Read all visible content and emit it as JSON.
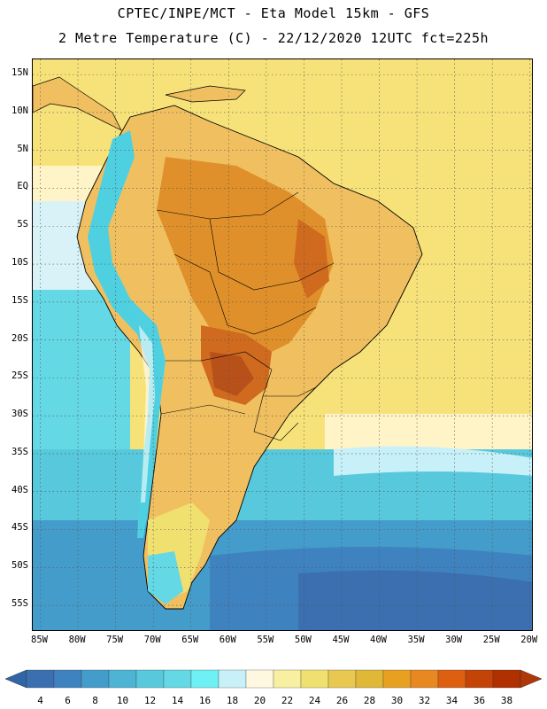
{
  "header": {
    "title_line1": "CPTEC/INPE/MCT -  Eta Model 15km - GFS",
    "title_line2": "2 Metre Temperature (C) - 22/12/2020 12UTC fct=225h"
  },
  "map": {
    "lat_labels": [
      "15N",
      "10N",
      "5N",
      "EQ",
      "5S",
      "10S",
      "15S",
      "20S",
      "25S",
      "30S",
      "35S",
      "40S",
      "45S",
      "50S",
      "55S"
    ],
    "lat_values": [
      15,
      10,
      5,
      0,
      -5,
      -10,
      -15,
      -20,
      -25,
      -30,
      -35,
      -40,
      -45,
      -50,
      -55
    ],
    "lon_labels": [
      "85W",
      "80W",
      "75W",
      "70W",
      "65W",
      "60W",
      "55W",
      "50W",
      "45W",
      "40W",
      "35W",
      "30W",
      "25W",
      "20W"
    ],
    "lon_values": [
      -85,
      -80,
      -75,
      -70,
      -65,
      -60,
      -55,
      -50,
      -45,
      -40,
      -35,
      -30,
      -25,
      -20
    ],
    "extent": {
      "lon_min": -86,
      "lon_max": -19.5,
      "lat_min": -58.5,
      "lat_max": 17
    },
    "colors": {
      "ocean_warm": "#f7e27a",
      "ocean_cool": "#fff3c8",
      "land_warm": "#f0c060",
      "land_hot": "#e0902a",
      "land_hotter": "#cf6a1e",
      "land_hottest": "#b8501a",
      "andes_cold": "#4fd0e0",
      "ocean_cold1": "#5cc8d8",
      "ocean_cold2": "#48b4d4",
      "ocean_cold3": "#3a8fc8",
      "ocean_cold4": "#2f6fb4",
      "ocean_cold5": "#2a5aa8"
    }
  },
  "colorbar": {
    "labels": [
      "4",
      "6",
      "8",
      "10",
      "12",
      "14",
      "16",
      "18",
      "20",
      "22",
      "24",
      "26",
      "28",
      "30",
      "32",
      "34",
      "36",
      "38"
    ],
    "colors": [
      "#3b6fb0",
      "#3f82c0",
      "#449ccb",
      "#4db4d4",
      "#58c8dc",
      "#64d8e4",
      "#6ef0f4",
      "#c8f0f8",
      "#fff8e0",
      "#f8f0a0",
      "#f0e070",
      "#e8c850",
      "#e0b838",
      "#e8a020",
      "#e88820",
      "#dc6010",
      "#c44408",
      "#b03000"
    ],
    "end_low_color": "#3066a8",
    "end_high_color": "#b03808"
  }
}
